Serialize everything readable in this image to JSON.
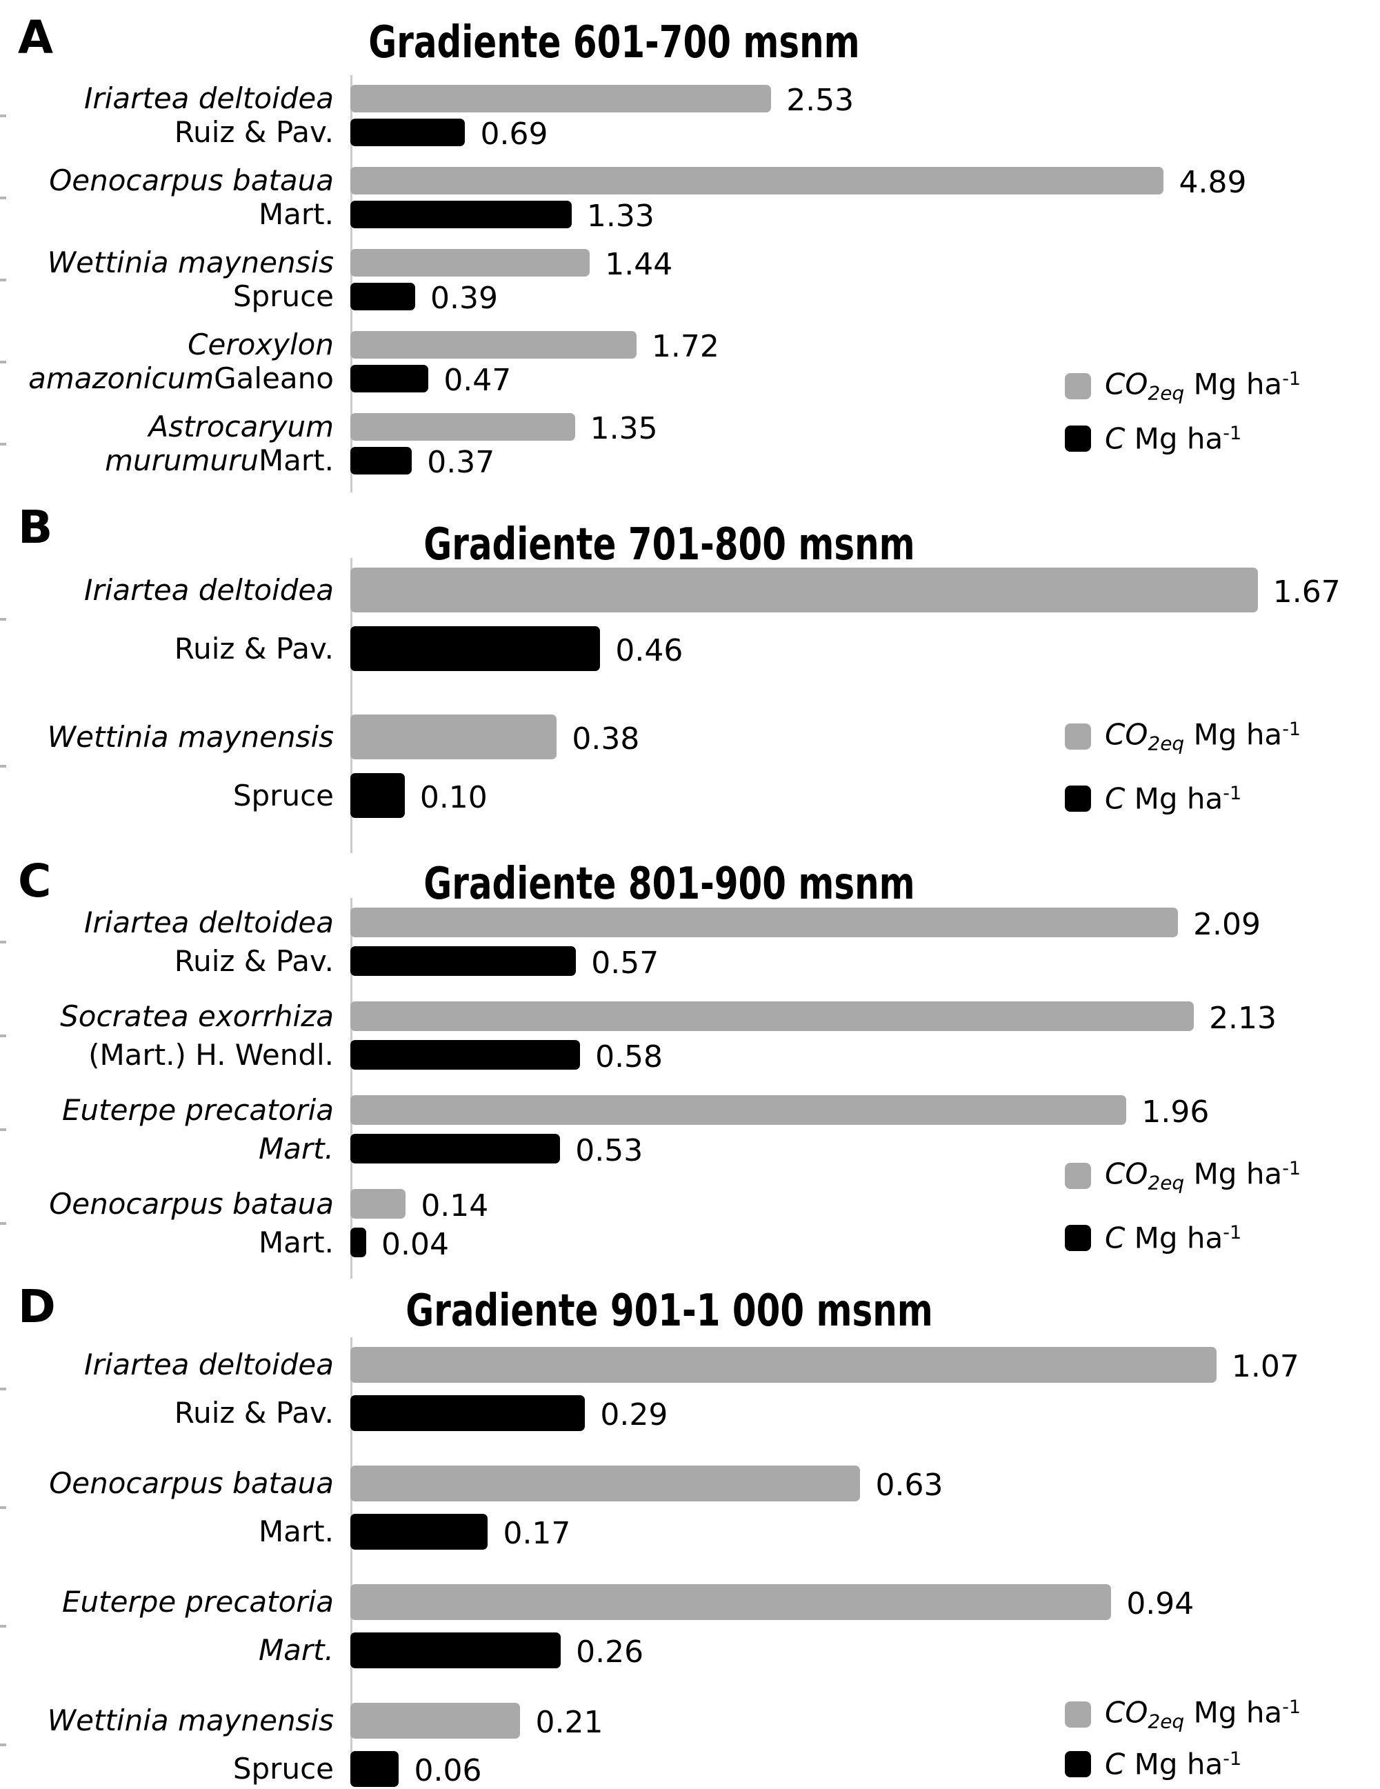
{
  "colors": {
    "co2_bar": "#a9a9a9",
    "c_bar": "#000000",
    "axis_line": "#cccccc",
    "tick": "#b5b5b5",
    "text": "#000000",
    "background": "#ffffff"
  },
  "legend": {
    "co2": {
      "symbol_italic": "CO",
      "subscript_italic": "2eq",
      "unit": " Mg ha",
      "superscript": "-1"
    },
    "c": {
      "symbol_italic": "C",
      "unit": " Mg ha",
      "superscript": "-1"
    }
  },
  "chart_data": [
    {
      "type": "bar",
      "orientation": "horizontal",
      "panel_letter": "A",
      "title": "Gradiente 601-700 msnm",
      "x_axis": {
        "min": 0,
        "max_est": 6.19,
        "ticks_visible": false,
        "grid": false
      },
      "legend_position": "right",
      "categories": [
        {
          "line1_italic": "Iriartea deltoidea",
          "line2_italic": "",
          "line2_roman": "Ruiz & Pav."
        },
        {
          "line1_italic": "Oenocarpus bataua",
          "line2_italic": "",
          "line2_roman": "Mart."
        },
        {
          "line1_italic": "Wettinia maynensis",
          "line2_italic": "",
          "line2_roman": "Spruce"
        },
        {
          "line1_italic": "Ceroxylon",
          "line2_italic": "amazonicum",
          "line2_roman": " Galeano"
        },
        {
          "line1_italic": "Astrocaryum",
          "line2_italic": "murumuru",
          "line2_roman": " Mart."
        }
      ],
      "series": [
        {
          "name": "CO2eq Mg ha-1",
          "values": [
            2.53,
            4.89,
            1.44,
            1.72,
            1.35
          ],
          "labels": [
            "2.53",
            "4.89",
            "1.44",
            "1.72",
            "1.35"
          ],
          "color_key": "co2_bar"
        },
        {
          "name": "C Mg ha-1",
          "values": [
            0.69,
            1.33,
            0.39,
            0.47,
            0.37
          ],
          "labels": [
            "0.69",
            "1.33",
            "0.39",
            "0.47",
            "0.37"
          ],
          "color_key": "c_bar"
        }
      ]
    },
    {
      "type": "bar",
      "orientation": "horizontal",
      "panel_letter": "B",
      "title": "Gradiente 701-800 msnm",
      "x_axis": {
        "min": 0,
        "max_est": 1.895,
        "ticks_visible": false,
        "grid": false
      },
      "legend_position": "right",
      "categories": [
        {
          "line1_italic": "Iriartea deltoidea",
          "line2_italic": "",
          "line2_roman": "Ruiz & Pav."
        },
        {
          "line1_italic": "Wettinia maynensis",
          "line2_italic": "",
          "line2_roman": "Spruce"
        }
      ],
      "series": [
        {
          "name": "CO2eq Mg ha-1",
          "values": [
            1.67,
            0.38
          ],
          "labels": [
            "1.67",
            "0.38"
          ],
          "color_key": "co2_bar"
        },
        {
          "name": "C Mg ha-1",
          "values": [
            0.46,
            0.1
          ],
          "labels": [
            "0.46",
            "0.10"
          ],
          "color_key": "c_bar"
        }
      ]
    },
    {
      "type": "bar",
      "orientation": "horizontal",
      "panel_letter": "C",
      "title": "Gradiente 801-900 msnm",
      "x_axis": {
        "min": 0,
        "max_est": 2.6,
        "ticks_visible": false,
        "grid": false
      },
      "legend_position": "right",
      "categories": [
        {
          "line1_italic": "Iriartea deltoidea",
          "line2_italic": "",
          "line2_roman": "Ruiz & Pav."
        },
        {
          "line1_italic": "Socratea exorrhiza",
          "line2_italic": "",
          "line2_roman": "(Mart.) H. Wendl."
        },
        {
          "line1_italic": "Euterpe precatoria",
          "line2_italic": "Mart.",
          "line2_roman": ""
        },
        {
          "line1_italic": "Oenocarpus bataua",
          "line2_italic": "",
          "line2_roman": "Mart."
        }
      ],
      "series": [
        {
          "name": "CO2eq Mg ha-1",
          "values": [
            2.09,
            2.13,
            1.96,
            0.14
          ],
          "labels": [
            "2.09",
            "2.13",
            "1.96",
            "0.14"
          ],
          "color_key": "co2_bar"
        },
        {
          "name": "C Mg ha-1",
          "values": [
            0.57,
            0.58,
            0.53,
            0.04
          ],
          "labels": [
            "0.57",
            "0.58",
            "0.53",
            "0.04"
          ],
          "color_key": "c_bar"
        }
      ]
    },
    {
      "type": "bar",
      "orientation": "horizontal",
      "panel_letter": "D",
      "title": "Gradiente 901-1 000 msnm",
      "x_axis": {
        "min": 0,
        "max_est": 1.272,
        "ticks_visible": false,
        "grid": false
      },
      "legend_position": "right",
      "categories": [
        {
          "line1_italic": "Iriartea deltoidea",
          "line2_italic": "",
          "line2_roman": "Ruiz & Pav."
        },
        {
          "line1_italic": "Oenocarpus bataua",
          "line2_italic": "",
          "line2_roman": "Mart."
        },
        {
          "line1_italic": "Euterpe precatoria",
          "line2_italic": "Mart.",
          "line2_roman": ""
        },
        {
          "line1_italic": "Wettinia maynensis",
          "line2_italic": "",
          "line2_roman": "Spruce"
        }
      ],
      "series": [
        {
          "name": "CO2eq Mg ha-1",
          "values": [
            1.07,
            0.63,
            0.94,
            0.21
          ],
          "labels": [
            "1.07",
            "0.63",
            "0.94",
            "0.21"
          ],
          "color_key": "co2_bar"
        },
        {
          "name": "C Mg ha-1",
          "values": [
            0.29,
            0.17,
            0.26,
            0.06
          ],
          "labels": [
            "0.29",
            "0.17",
            "0.26",
            "0.06"
          ],
          "color_key": "c_bar"
        }
      ]
    }
  ]
}
